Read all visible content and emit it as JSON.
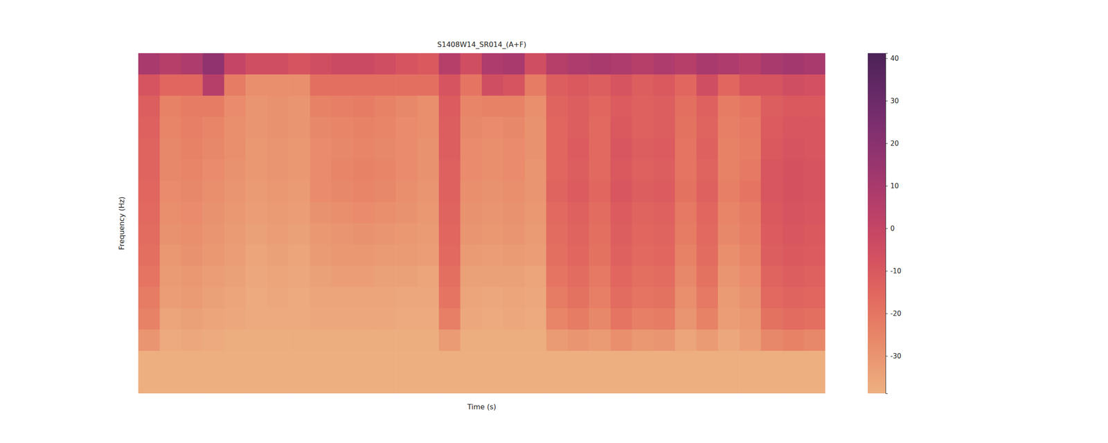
{
  "chart_data": {
    "type": "heatmap",
    "title": "S1408W14_SR014_(A+F)",
    "x_label": "Time (s)",
    "y_label": "Frequency (Hz)",
    "tick_labels": false,
    "z": [
      [
        10,
        5,
        8,
        18,
        0,
        -5,
        -5,
        -8,
        -5,
        -3,
        -3,
        -5,
        -8,
        -10,
        5,
        -5,
        8,
        10,
        -5,
        5,
        8,
        10,
        8,
        5,
        8,
        5,
        10,
        8,
        5,
        10,
        12,
        10
      ],
      [
        -8,
        -15,
        -15,
        5,
        -22,
        -28,
        -28,
        -28,
        -18,
        -18,
        -18,
        -18,
        -18,
        -18,
        -8,
        -20,
        -5,
        -8,
        -22,
        -12,
        -10,
        -12,
        -8,
        -12,
        -10,
        -15,
        -5,
        -15,
        -8,
        -8,
        -5,
        -6
      ],
      [
        -12,
        -24,
        -22,
        -22,
        -27,
        -30,
        -29,
        -30,
        -24,
        -23,
        -22,
        -24,
        -26,
        -28,
        -11,
        -25,
        -24,
        -24,
        -28,
        -14,
        -12,
        -15,
        -11,
        -13,
        -12,
        -18,
        -13,
        -22,
        -20,
        -12,
        -10,
        -10
      ],
      [
        -13,
        -25,
        -23,
        -25,
        -28,
        -30,
        -29,
        -30,
        -26,
        -25,
        -24,
        -25,
        -27,
        -28,
        -12,
        -26,
        -27,
        -26,
        -29,
        -15,
        -12,
        -16,
        -10,
        -13,
        -12,
        -19,
        -14,
        -23,
        -21,
        -11,
        -9,
        -9
      ],
      [
        -14,
        -26,
        -24,
        -26,
        -28,
        -31,
        -30,
        -31,
        -27,
        -26,
        -25,
        -26,
        -27,
        -29,
        -12,
        -27,
        -28,
        -27,
        -29,
        -15,
        -11,
        -16,
        -9,
        -12,
        -11,
        -20,
        -13,
        -24,
        -22,
        -10,
        -8,
        -9
      ],
      [
        -14,
        -26,
        -25,
        -27,
        -29,
        -31,
        -30,
        -31,
        -27,
        -25,
        -24,
        -25,
        -27,
        -29,
        -13,
        -27,
        -28,
        -27,
        -30,
        -15,
        -12,
        -16,
        -10,
        -13,
        -12,
        -20,
        -14,
        -24,
        -21,
        -9,
        -7,
        -8
      ],
      [
        -15,
        -27,
        -26,
        -28,
        -30,
        -32,
        -31,
        -32,
        -27,
        -26,
        -25,
        -26,
        -28,
        -30,
        -13,
        -28,
        -29,
        -28,
        -30,
        -14,
        -11,
        -15,
        -9,
        -12,
        -11,
        -19,
        -13,
        -23,
        -20,
        -9,
        -7,
        -8
      ],
      [
        -16,
        -28,
        -27,
        -29,
        -31,
        -33,
        -32,
        -33,
        -29,
        -28,
        -27,
        -28,
        -29,
        -31,
        -14,
        -29,
        -30,
        -29,
        -31,
        -16,
        -13,
        -17,
        -11,
        -14,
        -13,
        -21,
        -15,
        -25,
        -22,
        -10,
        -8,
        -9
      ],
      [
        -17,
        -29,
        -28,
        -30,
        -32,
        -34,
        -33,
        -34,
        -31,
        -30,
        -29,
        -30,
        -31,
        -32,
        -15,
        -30,
        -31,
        -30,
        -32,
        -17,
        -14,
        -18,
        -12,
        -15,
        -14,
        -22,
        -16,
        -26,
        -23,
        -11,
        -9,
        -10
      ],
      [
        -18,
        -31,
        -29,
        -31,
        -33,
        -35,
        -34,
        -35,
        -32,
        -31,
        -31,
        -32,
        -32,
        -33,
        -16,
        -32,
        -33,
        -32,
        -33,
        -18,
        -15,
        -19,
        -13,
        -16,
        -15,
        -24,
        -17,
        -28,
        -25,
        -12,
        -10,
        -11
      ],
      [
        -20,
        -32,
        -31,
        -33,
        -34,
        -36,
        -35,
        -36,
        -34,
        -33,
        -33,
        -34,
        -34,
        -35,
        -18,
        -34,
        -34,
        -34,
        -35,
        -20,
        -17,
        -21,
        -15,
        -18,
        -17,
        -26,
        -19,
        -30,
        -27,
        -14,
        -12,
        -13
      ],
      [
        -22,
        -33,
        -32,
        -34,
        -35,
        -37,
        -36,
        -37,
        -35,
        -35,
        -35,
        -35,
        -36,
        -36,
        -20,
        -35,
        -36,
        -35,
        -36,
        -22,
        -19,
        -23,
        -17,
        -20,
        -19,
        -28,
        -21,
        -32,
        -29,
        -16,
        -14,
        -15
      ],
      [
        -24,
        -35,
        -34,
        -35,
        -36,
        -37,
        -37,
        -37,
        -36,
        -36,
        -36,
        -36,
        -37,
        -37,
        -23,
        -36,
        -37,
        -36,
        -37,
        -25,
        -22,
        -26,
        -20,
        -23,
        -22,
        -30,
        -24,
        -33,
        -31,
        -19,
        -17,
        -18
      ],
      [
        -30,
        -37,
        -36,
        -37,
        -38,
        -38,
        -38,
        -38,
        -38,
        -38,
        -38,
        -38,
        -38,
        -38,
        -32,
        -38,
        -38,
        -38,
        -38,
        -32,
        -30,
        -32,
        -28,
        -31,
        -30,
        -35,
        -32,
        -36,
        -33,
        -26,
        -24,
        -26
      ],
      [
        -38.5,
        -38.5,
        -38.5,
        -38.5,
        -38.5,
        -38.5,
        -38.5,
        -38.5,
        -38.5,
        -38.5,
        -38.5,
        -38.5,
        -38.5,
        -38.5,
        -38.5,
        -38.5,
        -38.5,
        -38.5,
        -38.5,
        -38.5,
        -38.5,
        -38.5,
        -38.5,
        -38.5,
        -38.5,
        -38.5,
        -38.5,
        -38.5,
        -38.5,
        -38.5,
        -38.5,
        -38.5
      ],
      [
        -38.5,
        -38.5,
        -38.5,
        -38.5,
        -38.5,
        -38.5,
        -38.5,
        -38.5,
        -38.5,
        -38.5,
        -38.5,
        -38.5,
        -38.5,
        -38.5,
        -38.5,
        -38.5,
        -38.5,
        -38.5,
        -38.5,
        -38.5,
        -38.5,
        -38.5,
        -38.5,
        -38.5,
        -38.5,
        -38.5,
        -38.5,
        -38.5,
        -38.5,
        -38.5,
        -38.5,
        -38.5
      ]
    ],
    "colorbar": {
      "range": [
        -38.8,
        41.2
      ],
      "ticks": [
        -30,
        -20,
        -10,
        0,
        10,
        20,
        30,
        40
      ]
    }
  }
}
